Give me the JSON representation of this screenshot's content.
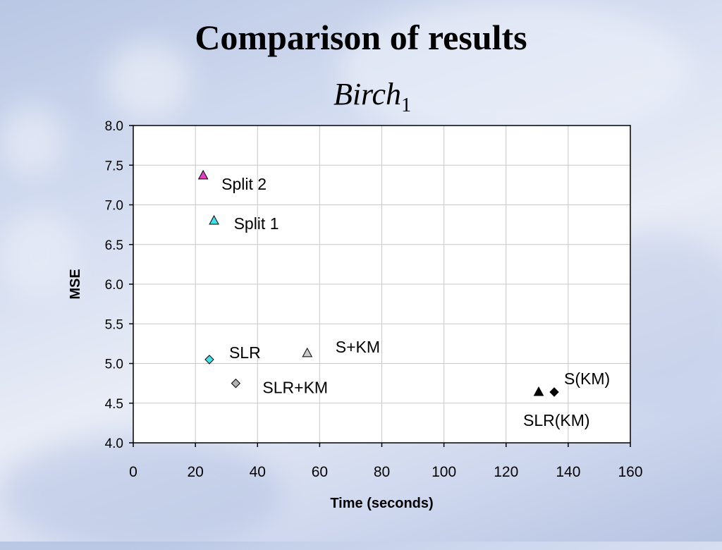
{
  "slide": {
    "title": "Comparison of results",
    "subtitle": "Birch",
    "subtitle_subscript": "1"
  },
  "chart_data": {
    "type": "scatter",
    "title": "",
    "xlabel": "Time (seconds)",
    "ylabel": "MSE",
    "xlim": [
      0,
      160
    ],
    "ylim": [
      4.0,
      8.0
    ],
    "xticks": [
      0,
      20,
      40,
      60,
      80,
      100,
      120,
      140,
      160
    ],
    "yticks": [
      "4.0",
      "4.5",
      "5.0",
      "5.5",
      "6.0",
      "6.5",
      "7.0",
      "7.5",
      "8.0"
    ],
    "grid": true,
    "legend": "none",
    "points": [
      {
        "name": "Split 2",
        "x": 22.5,
        "y": 7.37,
        "marker": "triangle",
        "color": "#e040c0"
      },
      {
        "name": "Split 1",
        "x": 26,
        "y": 6.8,
        "marker": "triangle",
        "color": "#40e0e8"
      },
      {
        "name": "SLR",
        "x": 24.5,
        "y": 5.05,
        "marker": "diamond",
        "color": "#40e0e8"
      },
      {
        "name": "SLR+KM",
        "x": 33,
        "y": 4.75,
        "marker": "diamond",
        "color": "#b0b0b0"
      },
      {
        "name": "S+KM",
        "x": 56,
        "y": 5.13,
        "marker": "triangle",
        "color": "#c8c8c8"
      },
      {
        "name": "SLR(KM)",
        "x": 130.5,
        "y": 4.64,
        "marker": "triangle",
        "color": "#000000"
      },
      {
        "name": "S(KM)",
        "x": 135.5,
        "y": 4.64,
        "marker": "diamond",
        "color": "#000000"
      }
    ]
  }
}
